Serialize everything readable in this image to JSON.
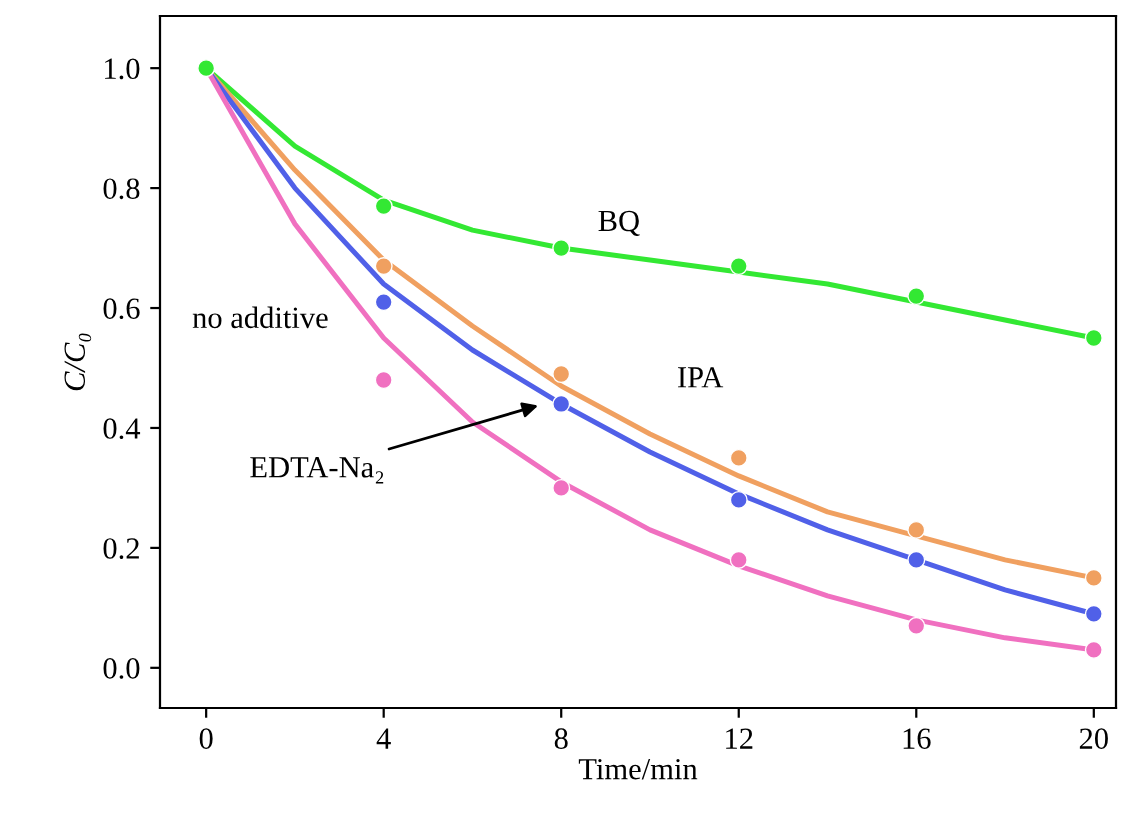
{
  "chart_data": {
    "type": "scatter",
    "xlabel": "Time/min",
    "ylabel": "C/C₀",
    "x": [
      0,
      4,
      8,
      12,
      16,
      20
    ],
    "series": [
      {
        "type": "line",
        "marker": "none",
        "color": "#33e833",
        "x": [
          0,
          2,
          4,
          6,
          8,
          10,
          12,
          14,
          16,
          18,
          20
        ],
        "values": [
          1.0,
          0.87,
          0.78,
          0.73,
          0.7,
          0.68,
          0.66,
          0.64,
          0.61,
          0.58,
          0.55
        ]
      },
      {
        "type": "line",
        "marker": "none",
        "color": "#f0a060",
        "x": [
          0,
          2,
          4,
          6,
          8,
          10,
          12,
          14,
          16,
          18,
          20
        ],
        "values": [
          1.0,
          0.83,
          0.68,
          0.57,
          0.47,
          0.39,
          0.32,
          0.26,
          0.22,
          0.18,
          0.15
        ]
      },
      {
        "type": "line",
        "marker": "none",
        "color": "#5060e8",
        "x": [
          0,
          2,
          4,
          6,
          8,
          10,
          12,
          14,
          16,
          18,
          20
        ],
        "values": [
          1.0,
          0.8,
          0.64,
          0.53,
          0.44,
          0.36,
          0.29,
          0.23,
          0.18,
          0.13,
          0.09
        ]
      },
      {
        "type": "line",
        "marker": "none",
        "color": "#f070c0",
        "x": [
          0,
          2,
          4,
          6,
          8,
          10,
          12,
          14,
          16,
          18,
          20
        ],
        "values": [
          1.0,
          0.74,
          0.55,
          0.41,
          0.31,
          0.23,
          0.17,
          0.12,
          0.08,
          0.05,
          0.03
        ]
      },
      {
        "color": "#33e833",
        "values": [
          1.0,
          0.77,
          0.7,
          0.67,
          0.62,
          0.55
        ]
      },
      {
        "color": "#f0a060",
        "values": [
          null,
          0.67,
          0.49,
          0.35,
          0.23,
          0.15
        ]
      },
      {
        "color": "#5060e8",
        "values": [
          null,
          0.61,
          0.44,
          0.28,
          0.18,
          0.09
        ]
      },
      {
        "color": "#f070c0",
        "values": [
          null,
          0.48,
          0.3,
          0.18,
          0.07,
          0.03
        ]
      }
    ],
    "annotations": [
      "BQ",
      "IPA",
      "no additive",
      {
        "text": "EDTA-Na₂",
        "x": 7.6,
        "y": 0.44
      }
    ],
    "xlim": [
      -1.04,
      20.5
    ],
    "ylim": [
      -0.067,
      1.087
    ],
    "xticks": [
      0,
      4,
      8,
      12,
      16,
      20
    ],
    "yticks": [
      {
        "value": 0,
        "label": "0.0"
      },
      {
        "value": 0.2,
        "label": "0.2"
      },
      {
        "value": 0.4,
        "label": "0.4"
      },
      {
        "value": 0.6,
        "label": "0.6"
      },
      {
        "value": 0.8,
        "label": "0.8"
      },
      {
        "value": 1,
        "label": "1.0"
      }
    ],
    "marker": "circle",
    "grid": false,
    "legend": false
  }
}
